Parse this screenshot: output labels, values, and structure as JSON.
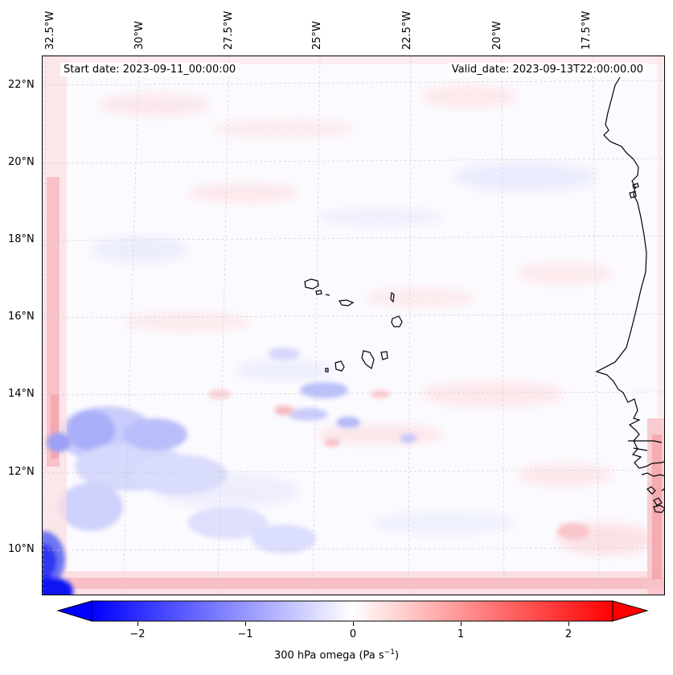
{
  "map": {
    "start_date_text": "Start date: 2023-09-11_00:00:00",
    "valid_date_text": "Valid_date: 2023-09-13T22:00:00.00",
    "lon_labels": [
      "32.5°W",
      "30°W",
      "27.5°W",
      "25°W",
      "22.5°W",
      "20°W",
      "17.5°W"
    ],
    "lat_labels": [
      "22°N",
      "20°N",
      "18°N",
      "16°N",
      "14°N",
      "12°N",
      "10°N"
    ],
    "field_name": "300 hPa omega",
    "colormap": "bwr",
    "colors": {
      "negative": "#0000ff",
      "zero": "#ffffff",
      "positive": "#ff0000"
    },
    "colorbar": {
      "ticks": [
        "−2",
        "−1",
        "0",
        "1",
        "2"
      ],
      "range": [
        -2.7,
        2.7
      ],
      "extend": "both",
      "label_main": "300 hPa omega (Pa s",
      "label_sup": "−1",
      "label_end": ")"
    }
  }
}
